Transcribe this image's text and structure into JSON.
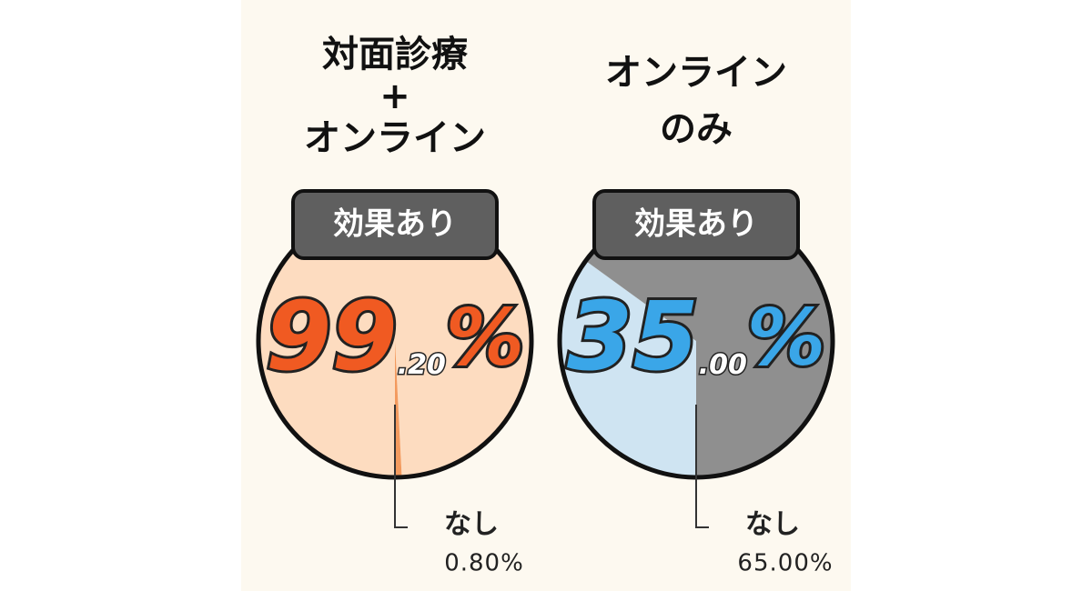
{
  "chart_data": [
    {
      "type": "pie",
      "title_lines": [
        "対面診療",
        "+",
        "オンライン"
      ],
      "categories": [
        "効果あり",
        "なし"
      ],
      "values": [
        99.2,
        0.8
      ],
      "value_labels": [
        "99.20%",
        "0.80%"
      ],
      "colors": [
        "#fddcc0",
        "#f39a5e"
      ],
      "label_color": "#f05a22"
    },
    {
      "type": "pie",
      "title_lines": [
        "オンライン",
        "のみ"
      ],
      "categories": [
        "効果あり",
        "なし"
      ],
      "values": [
        35,
        65
      ],
      "value_labels": [
        "35.00%",
        "65.00%"
      ],
      "colors": [
        "#cfe4f2",
        "#8f8f8f"
      ],
      "label_color": "#3aa6e8"
    }
  ]
}
